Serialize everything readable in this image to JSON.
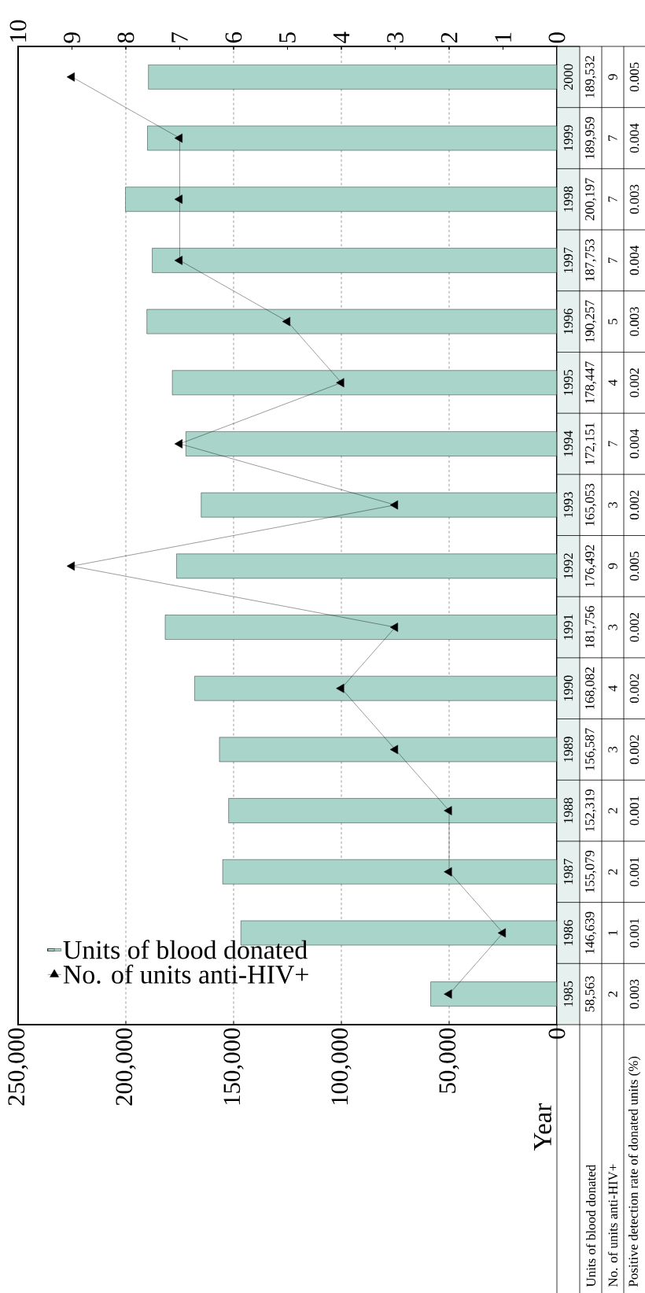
{
  "chart_data": {
    "type": "bar",
    "orientation": "horizontal",
    "ylabel": "Year",
    "categories": [
      "2000",
      "1999",
      "1998",
      "1997",
      "1996",
      "1995",
      "1994",
      "1993",
      "1992",
      "1991",
      "1990",
      "1989",
      "1988",
      "1987",
      "1986",
      "1985"
    ],
    "series": [
      {
        "name": "Units of blood donated",
        "color": "#a8d4c9",
        "values": [
          189532,
          189959,
          200197,
          187753,
          190257,
          178447,
          172151,
          165053,
          176492,
          181756,
          168082,
          156587,
          152319,
          155079,
          146639,
          58563
        ],
        "value_labels": [
          "189,532",
          "189,959",
          "200,197",
          "187,753",
          "190,257",
          "178,447",
          "172,151",
          "165,053",
          "176,492",
          "181,756",
          "168,082",
          "156,587",
          "152,319",
          "155,079",
          "146,639",
          "58,563"
        ]
      },
      {
        "name": "No. of units anti-HIV+",
        "type": "line",
        "axis": "x2",
        "color": "#000000",
        "marker": "triangle",
        "values": [
          9,
          7,
          7,
          7,
          5,
          4,
          7,
          3,
          9,
          3,
          4,
          3,
          2,
          2,
          1,
          2
        ]
      }
    ],
    "xlim": [
      250000,
      0
    ],
    "xticks": [
      {
        "value": 0,
        "label": "0"
      },
      {
        "value": 50000,
        "label": "50,000"
      },
      {
        "value": 100000,
        "label": "100,000"
      },
      {
        "value": 150000,
        "label": "150,000"
      },
      {
        "value": 200000,
        "label": "200,000"
      },
      {
        "value": 250000,
        "label": "250,000"
      }
    ],
    "x2lim": [
      10,
      0
    ],
    "x2ticks": [
      0,
      1,
      2,
      3,
      4,
      5,
      6,
      7,
      8,
      9,
      10
    ],
    "grid": "x",
    "legend": "bottom left",
    "data_labels": true,
    "annotations": [
      "Positive detection rate of donated units (%)",
      "0.005",
      "0.004",
      "0.003",
      "0.004",
      "0.003",
      "0.002",
      "0.004",
      "0.002",
      "0.005",
      "0.002",
      "0.002",
      "0.002",
      "0.001",
      "0.001",
      "0.001",
      "0.003"
    ]
  }
}
